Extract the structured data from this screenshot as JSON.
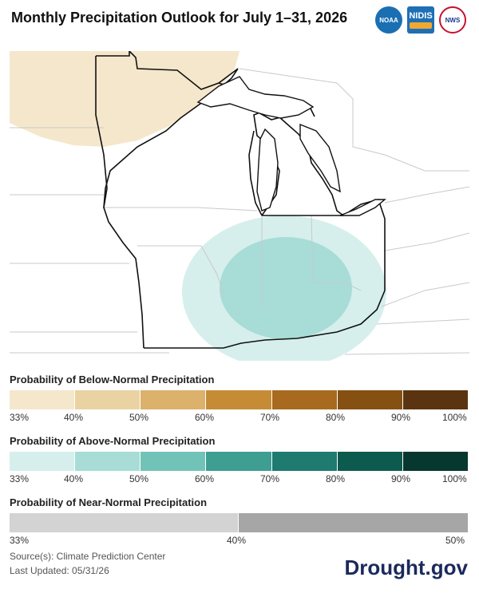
{
  "title": "Monthly Precipitation Outlook for July 1–31, 2026",
  "logos": {
    "noaa": "NOAA",
    "nidis": "NIDIS",
    "nws": "NWS"
  },
  "colors": {
    "below": [
      "#f5e7cb",
      "#ead3a2",
      "#dcb16b",
      "#c68c35",
      "#a86a1f",
      "#855012",
      "#5a3410"
    ],
    "above": [
      "#d6efec",
      "#a7ddd6",
      "#72c3b7",
      "#3d9e91",
      "#1f7a6f",
      "#0d5a4f",
      "#06382f"
    ],
    "near": [
      "#d3d3d3",
      "#a6a6a6"
    ]
  },
  "legend": {
    "below": {
      "title": "Probability of Below-Normal Precipitation",
      "ticks": [
        "33%",
        "40%",
        "50%",
        "60%",
        "70%",
        "80%",
        "90%",
        "100%"
      ]
    },
    "above": {
      "title": "Probability of Above-Normal Precipitation",
      "ticks": [
        "33%",
        "40%",
        "50%",
        "60%",
        "70%",
        "80%",
        "90%",
        "100%"
      ]
    },
    "near": {
      "title": "Probability of Near-Normal Precipitation",
      "ticks": [
        "33%",
        "40%",
        "50%"
      ]
    }
  },
  "source": "Source(s): Climate Prediction Center",
  "updated": "Last Updated: 05/31/26",
  "brand": "Drought.gov"
}
